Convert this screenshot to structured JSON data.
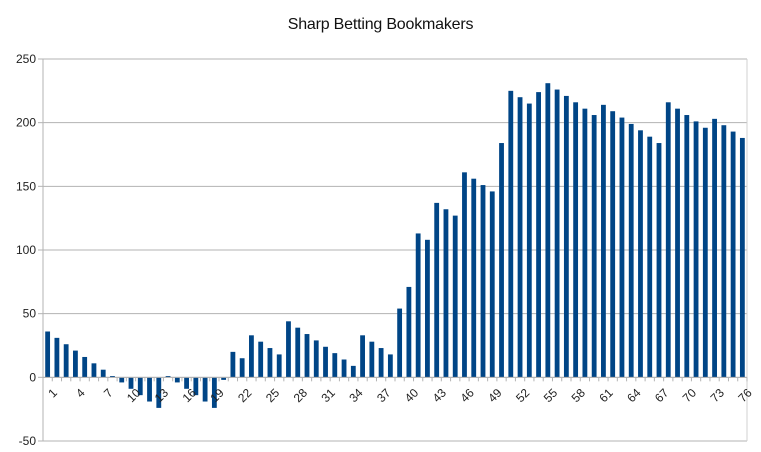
{
  "chart_data": {
    "type": "bar",
    "title": "Sharp Betting Bookmakers",
    "xlabel": "",
    "ylabel": "",
    "ylim": [
      -50,
      250
    ],
    "yticks": [
      -50,
      0,
      50,
      100,
      150,
      200,
      250
    ],
    "grid": true,
    "legend": null,
    "bar_color": "#004586",
    "categories": [
      1,
      2,
      3,
      4,
      5,
      6,
      7,
      8,
      9,
      10,
      11,
      12,
      13,
      14,
      15,
      16,
      17,
      18,
      19,
      20,
      21,
      22,
      23,
      24,
      25,
      26,
      27,
      28,
      29,
      30,
      31,
      32,
      33,
      34,
      35,
      36,
      37,
      38,
      39,
      40,
      41,
      42,
      43,
      44,
      45,
      46,
      47,
      48,
      49,
      50,
      51,
      52,
      53,
      54,
      55,
      56,
      57,
      58,
      59,
      60,
      61,
      62,
      63,
      64,
      65,
      66,
      67,
      68,
      69,
      70,
      71,
      72,
      73,
      74,
      75,
      76
    ],
    "xtick_labels_shown": [
      1,
      4,
      7,
      10,
      13,
      16,
      19,
      22,
      25,
      28,
      31,
      34,
      37,
      40,
      43,
      46,
      49,
      52,
      55,
      58,
      61,
      64,
      67,
      70,
      73,
      76
    ],
    "values": [
      36,
      31,
      26,
      21,
      16,
      11,
      6,
      1,
      -4,
      -9,
      -14,
      -19,
      -24,
      1,
      -4,
      -9,
      -14,
      -19,
      -24,
      -2,
      20,
      15,
      33,
      28,
      23,
      18,
      44,
      39,
      34,
      29,
      24,
      19,
      14,
      9,
      33,
      28,
      23,
      18,
      54,
      71,
      113,
      108,
      137,
      132,
      127,
      161,
      156,
      151,
      146,
      184,
      225,
      220,
      215,
      224,
      231,
      226,
      221,
      216,
      211,
      206,
      214,
      209,
      204,
      199,
      194,
      189,
      184,
      216,
      211,
      206,
      201,
      196,
      203,
      198,
      193,
      188
    ]
  }
}
